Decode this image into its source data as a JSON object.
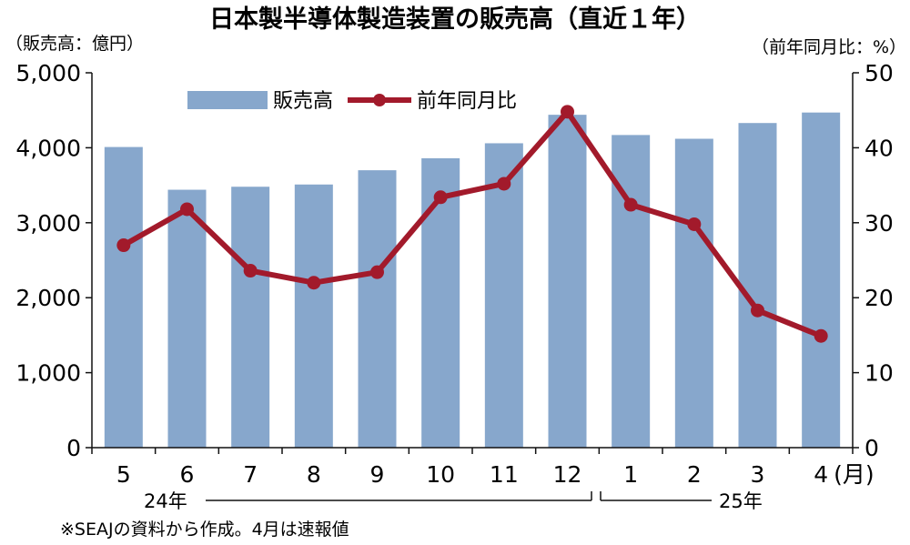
{
  "chart_data": {
    "type": "bar+line",
    "title": "日本製半導体製造装置の販売高（直近１年）",
    "left_unit": "（販売高：億円）",
    "right_unit": "（前年同月比：%）",
    "categories": [
      "5",
      "6",
      "7",
      "8",
      "9",
      "10",
      "11",
      "12",
      "1",
      "2",
      "3",
      "4"
    ],
    "x_unit": "(月)",
    "year_labels": [
      "24年",
      "25年"
    ],
    "series": [
      {
        "name": "販売高",
        "type": "bar",
        "axis": "left",
        "color": "#87a7cc",
        "values": [
          4010,
          3440,
          3480,
          3510,
          3700,
          3860,
          4060,
          4440,
          4170,
          4120,
          4330,
          4470
        ]
      },
      {
        "name": "前年同月比",
        "type": "line",
        "axis": "right",
        "color": "#a21a2b",
        "values": [
          27.0,
          31.8,
          23.6,
          22.0,
          23.4,
          33.4,
          35.2,
          44.8,
          32.4,
          29.8,
          18.3,
          14.9
        ]
      }
    ],
    "left_axis": {
      "min": 0,
      "max": 5000,
      "ticks": [
        "0",
        "1,000",
        "2,000",
        "3,000",
        "4,000",
        "5,000"
      ]
    },
    "right_axis": {
      "min": 0,
      "max": 50,
      "ticks": [
        "0",
        "10",
        "20",
        "30",
        "40",
        "50"
      ]
    },
    "grid": false,
    "legend_position": "top-left",
    "note": "※SEAJの資料から作成。4月は速報値"
  }
}
